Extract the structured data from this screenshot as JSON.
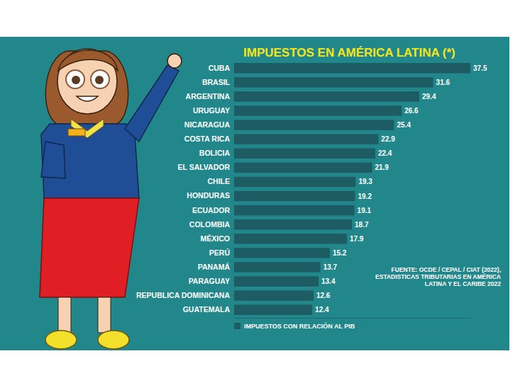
{
  "chart_data": {
    "type": "bar",
    "orientation": "horizontal",
    "title": "IMPUESTOS EN AMÉRICA LATINA (*)",
    "categories": [
      "CUBA",
      "BRASIL",
      "ARGENTINA",
      "URUGUAY",
      "NICARAGUA",
      "COSTA RICA",
      "BOLICIA",
      "EL SALVADOR",
      "CHILE",
      "HONDURAS",
      "ECUADOR",
      "COLOMBIA",
      "MÉXICO",
      "PERÚ",
      "PANAMÁ",
      "PARAGUAY",
      "REPUBLICA DOMINICANA",
      "GUATEMALA"
    ],
    "series": [
      {
        "name": "IMPUESTOS CON RELACIÓN AL PIB",
        "color": "#1d5c62",
        "values": [
          37.5,
          31.6,
          29.4,
          26.6,
          25.4,
          22.9,
          22.4,
          21.9,
          19.3,
          19.2,
          19.1,
          18.7,
          17.9,
          15.2,
          13.7,
          13.4,
          12.6,
          12.4
        ]
      }
    ],
    "xlim": [
      0,
      37.5
    ],
    "xticks": [],
    "tick_labels": "y",
    "data_labels": true,
    "grid": false,
    "legend": "bottom",
    "annotations": [
      "FUENTE: OCDE / CEPAL / CIAT (2022), ESTADISTICAS TRIBUTARIAS EN AMÉRICA LATINA Y EL CARIBE 2022"
    ]
  }
}
